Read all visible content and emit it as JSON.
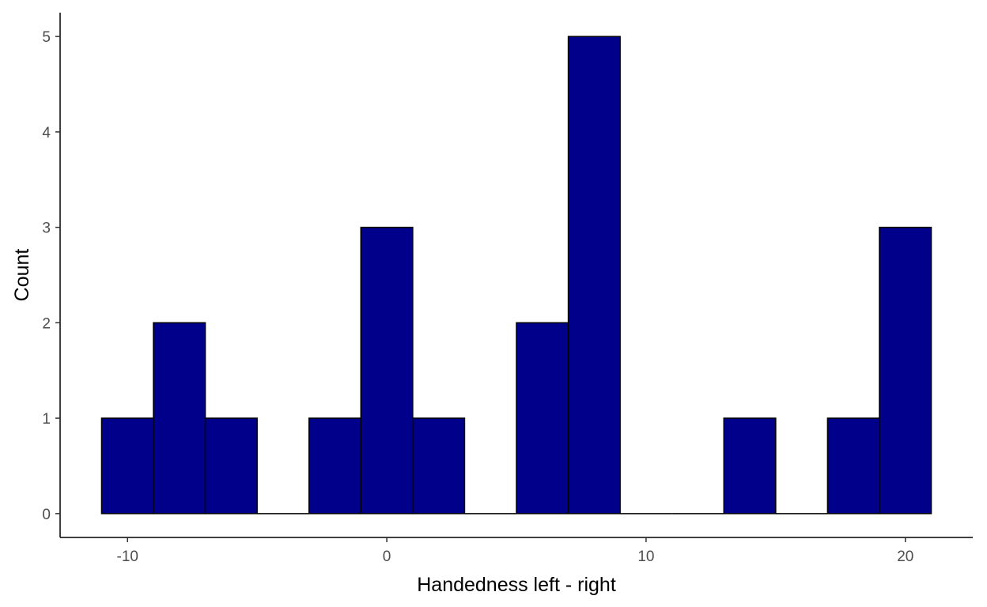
{
  "chart_data": {
    "type": "bar",
    "subtype": "histogram",
    "bin_width": 2,
    "bins": [
      {
        "x0": -11,
        "x1": -9,
        "count": 1
      },
      {
        "x0": -9,
        "x1": -7,
        "count": 2
      },
      {
        "x0": -7,
        "x1": -5,
        "count": 1
      },
      {
        "x0": -5,
        "x1": -3,
        "count": 0
      },
      {
        "x0": -3,
        "x1": -1,
        "count": 1
      },
      {
        "x0": -1,
        "x1": 1,
        "count": 3
      },
      {
        "x0": 1,
        "x1": 3,
        "count": 1
      },
      {
        "x0": 3,
        "x1": 5,
        "count": 0
      },
      {
        "x0": 5,
        "x1": 7,
        "count": 2
      },
      {
        "x0": 7,
        "x1": 9,
        "count": 5
      },
      {
        "x0": 9,
        "x1": 11,
        "count": 0
      },
      {
        "x0": 11,
        "x1": 13,
        "count": 0
      },
      {
        "x0": 13,
        "x1": 15,
        "count": 1
      },
      {
        "x0": 15,
        "x1": 17,
        "count": 0
      },
      {
        "x0": 17,
        "x1": 19,
        "count": 1
      },
      {
        "x0": 19,
        "x1": 21,
        "count": 3
      }
    ],
    "xlabel": "Handedness left - right",
    "ylabel": "Count",
    "xlim": [
      -12.6,
      22.6
    ],
    "ylim": [
      -0.25,
      5.25
    ],
    "xticks": [
      -10,
      0,
      10,
      20
    ],
    "xtick_labels": [
      "-10",
      "0",
      "10",
      "20"
    ],
    "yticks": [
      0,
      1,
      2,
      3,
      4,
      5
    ],
    "ytick_labels": [
      "0",
      "1",
      "2",
      "3",
      "4",
      "5"
    ],
    "grid": false,
    "legend": "none",
    "bar_fill": "#00008b",
    "bar_stroke": "#000000"
  }
}
